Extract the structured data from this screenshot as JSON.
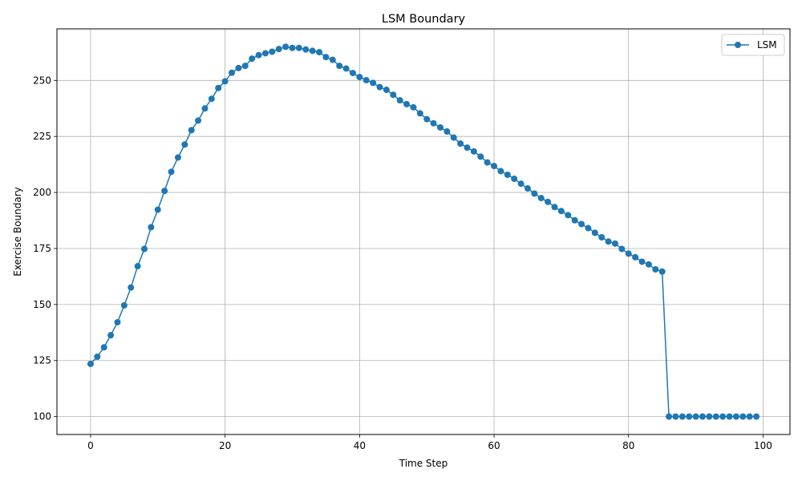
{
  "chart_data": {
    "type": "line",
    "title": "LSM Boundary",
    "xlabel": "Time Step",
    "ylabel": "Exercise Boundary",
    "xlim": [
      -5,
      104
    ],
    "ylim": [
      92,
      273
    ],
    "xticks": [
      0,
      20,
      40,
      60,
      80,
      100
    ],
    "yticks": [
      100,
      125,
      150,
      175,
      200,
      225,
      250
    ],
    "grid": true,
    "legend": {
      "position": "top-right"
    },
    "series": [
      {
        "name": "LSM",
        "color": "#1f77b4",
        "marker": "circle",
        "x": [
          0,
          1,
          2,
          3,
          4,
          5,
          6,
          7,
          8,
          9,
          10,
          11,
          12,
          13,
          14,
          15,
          16,
          17,
          18,
          19,
          20,
          21,
          22,
          23,
          24,
          25,
          26,
          27,
          28,
          29,
          30,
          31,
          32,
          33,
          34,
          35,
          36,
          37,
          38,
          39,
          40,
          41,
          42,
          43,
          44,
          45,
          46,
          47,
          48,
          49,
          50,
          51,
          52,
          53,
          54,
          55,
          56,
          57,
          58,
          59,
          60,
          61,
          62,
          63,
          64,
          65,
          66,
          67,
          68,
          69,
          70,
          71,
          72,
          73,
          74,
          75,
          76,
          77,
          78,
          79,
          80,
          81,
          82,
          83,
          84,
          85,
          86,
          87,
          88,
          89,
          90,
          91,
          92,
          93,
          94,
          95,
          96,
          97,
          98,
          99
        ],
        "values": [
          123.5,
          126.7,
          130.9,
          136.3,
          142.1,
          149.6,
          157.6,
          167.1,
          174.8,
          184.5,
          192.3,
          200.7,
          209.2,
          215.6,
          221.4,
          227.8,
          232.1,
          237.5,
          241.8,
          246.6,
          249.6,
          253.4,
          255.5,
          256.5,
          259.7,
          261.3,
          262.1,
          262.8,
          264.0,
          265.0,
          264.5,
          264.5,
          263.8,
          263.2,
          262.6,
          260.4,
          259.2,
          256.5,
          255.3,
          253.3,
          251.5,
          250.1,
          248.9,
          247.0,
          245.8,
          243.6,
          241.1,
          239.4,
          238.0,
          235.3,
          232.7,
          230.9,
          229.0,
          227.2,
          224.5,
          221.8,
          220.0,
          218.3,
          216.0,
          213.4,
          211.8,
          209.5,
          207.9,
          206.1,
          203.9,
          201.8,
          199.5,
          197.5,
          195.8,
          193.5,
          191.7,
          189.9,
          187.6,
          185.9,
          184.1,
          182.0,
          180.0,
          178.1,
          177.2,
          174.8,
          172.7,
          171.1,
          169.1,
          167.9,
          165.7,
          164.7,
          100.0,
          100.0,
          100.0,
          100.0,
          100.0,
          100.0,
          100.0,
          100.0,
          100.0,
          100.0,
          100.0,
          100.0,
          100.0,
          100.0
        ]
      }
    ]
  }
}
